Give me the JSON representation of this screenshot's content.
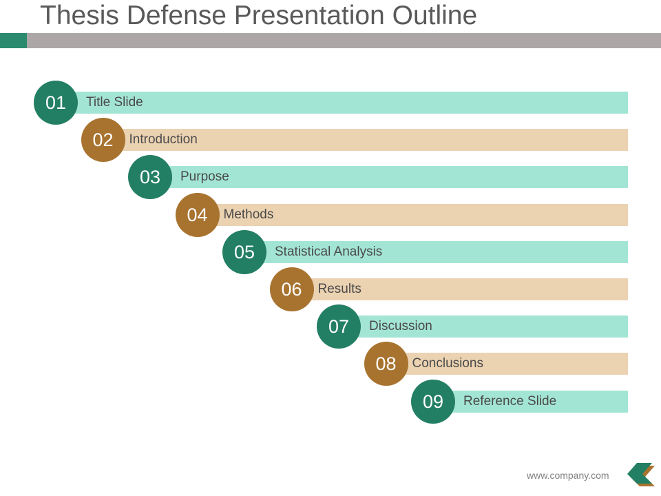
{
  "slide": {
    "title": "Thesis Defense Presentation Outline",
    "footer_url": "www.company.com"
  },
  "colors": {
    "green_dark": "#237f63",
    "green_light": "#a3e5d4",
    "tan_dark": "#a8732f",
    "tan_light": "#ebd2b1",
    "title_bar": "#aca6a6",
    "title_accent": "#2b8a6d"
  },
  "outline": {
    "items": [
      {
        "number": "01",
        "label": "Title Slide",
        "color": "green"
      },
      {
        "number": "02",
        "label": "Introduction",
        "color": "tan"
      },
      {
        "number": "03",
        "label": "Purpose",
        "color": "green"
      },
      {
        "number": "04",
        "label": "Methods",
        "color": "tan"
      },
      {
        "number": "05",
        "label": "Statistical Analysis",
        "color": "green"
      },
      {
        "number": "06",
        "label": "Results",
        "color": "tan"
      },
      {
        "number": "07",
        "label": "Discussion",
        "color": "green"
      },
      {
        "number": "08",
        "label": "Conclusions",
        "color": "tan"
      },
      {
        "number": "09",
        "label": "Reference Slide",
        "color": "green"
      }
    ]
  },
  "icons": {
    "footer_logo": "chevron-left-icon"
  }
}
